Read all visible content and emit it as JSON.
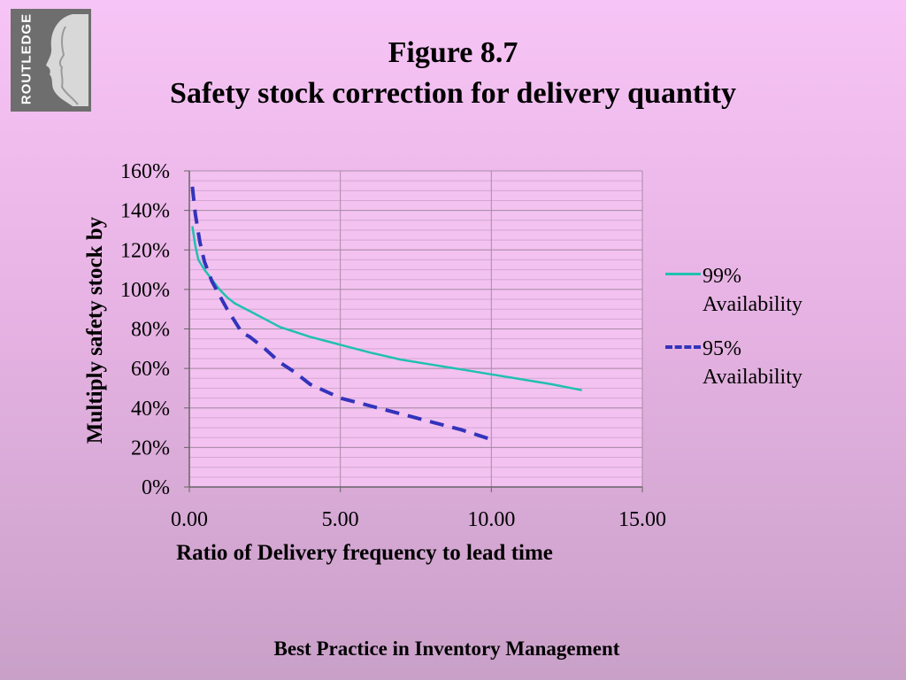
{
  "logo": {
    "text": "ROUTLEDGE",
    "icon": "routledge-profile-logo"
  },
  "title": {
    "line1": "Figure 8.7",
    "line2": "Safety stock correction for delivery quantity"
  },
  "footer": "Best Practice in Inventory Management",
  "colors": {
    "series_99": "#20c0b0",
    "series_95": "#3333bb",
    "grid": "#a98ba8"
  },
  "chart_data": {
    "type": "line",
    "xlabel": "Ratio of Delivery frequency to lead time",
    "ylabel": "Multiply safety stock by",
    "xlim": [
      0,
      15
    ],
    "ylim": [
      0,
      1.6
    ],
    "x_ticks": [
      "0.00",
      "5.00",
      "10.00",
      "15.00"
    ],
    "y_ticks": [
      "0%",
      "20%",
      "40%",
      "60%",
      "80%",
      "100%",
      "120%",
      "140%",
      "160%"
    ],
    "grid": true,
    "legend": "right",
    "series": [
      {
        "name": "99% Availability",
        "style": "solid",
        "x": [
          0.1,
          0.2,
          0.3,
          0.5,
          0.75,
          1.0,
          1.25,
          1.5,
          1.75,
          2.0,
          2.5,
          3.0,
          4.0,
          5.0,
          6.0,
          7.0,
          8.0,
          9.0,
          10.0,
          11.0,
          12.0,
          13.0
        ],
        "y": [
          1.32,
          1.22,
          1.15,
          1.1,
          1.05,
          1.0,
          0.96,
          0.93,
          0.91,
          0.89,
          0.85,
          0.81,
          0.76,
          0.72,
          0.68,
          0.645,
          0.62,
          0.595,
          0.57,
          0.545,
          0.52,
          0.49
        ]
      },
      {
        "name": "95% Availability",
        "style": "dashed",
        "x": [
          0.1,
          0.2,
          0.35,
          0.5,
          0.75,
          1.0,
          1.25,
          1.5,
          1.75,
          2.0,
          2.5,
          3.0,
          3.5,
          4.0,
          5.0,
          6.0,
          7.0,
          8.0,
          9.0,
          10.0
        ],
        "y": [
          1.52,
          1.38,
          1.24,
          1.14,
          1.04,
          0.97,
          0.9,
          0.84,
          0.78,
          0.76,
          0.7,
          0.63,
          0.58,
          0.52,
          0.45,
          0.41,
          0.37,
          0.33,
          0.29,
          0.24
        ]
      }
    ]
  }
}
